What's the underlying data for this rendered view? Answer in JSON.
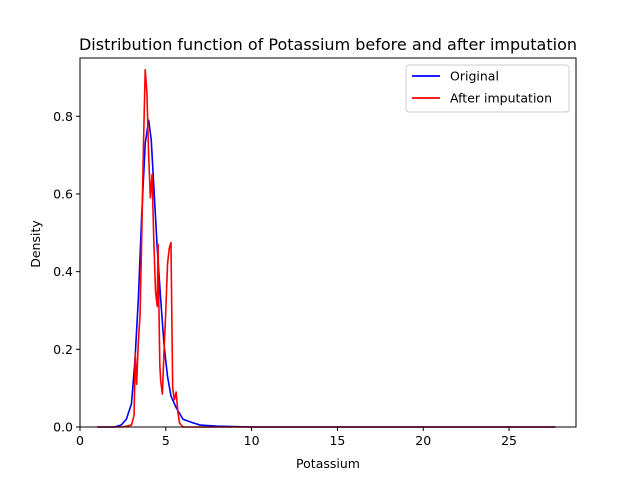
{
  "chart_data": {
    "type": "line",
    "title": "Distribution function of Potassium before and after imputation",
    "xlabel": "Potassium",
    "ylabel": "Density",
    "xlim": [
      0.0,
      28.9
    ],
    "ylim": [
      0.0,
      0.95
    ],
    "xticks": [
      0,
      5,
      10,
      15,
      20,
      25
    ],
    "xtick_labels": [
      "0",
      "5",
      "10",
      "15",
      "20",
      "25"
    ],
    "yticks": [
      0.0,
      0.2,
      0.4,
      0.6,
      0.8
    ],
    "ytick_labels": [
      "0.0",
      "0.2",
      "0.4",
      "0.6",
      "0.8"
    ],
    "grid": false,
    "legend_position": "top-right",
    "series": [
      {
        "name": "Original",
        "color": "#0000ff",
        "x": [
          1.0,
          2.0,
          2.4,
          2.7,
          3.0,
          3.2,
          3.4,
          3.6,
          3.8,
          4.0,
          4.15,
          4.3,
          4.5,
          4.7,
          4.9,
          5.1,
          5.3,
          5.6,
          6.0,
          6.5,
          7.0,
          8.0,
          10.0,
          15.0,
          20.0,
          25.0,
          27.7
        ],
        "y": [
          0.0,
          0.0,
          0.005,
          0.02,
          0.06,
          0.17,
          0.33,
          0.55,
          0.73,
          0.79,
          0.74,
          0.62,
          0.46,
          0.33,
          0.21,
          0.13,
          0.08,
          0.05,
          0.02,
          0.012,
          0.005,
          0.002,
          0.0,
          0.0,
          0.0,
          0.0,
          0.0
        ]
      },
      {
        "name": "After imputation",
        "color": "#ff0000",
        "x": [
          1.0,
          2.5,
          3.0,
          3.15,
          3.22,
          3.3,
          3.4,
          3.5,
          3.6,
          3.7,
          3.8,
          3.9,
          4.0,
          4.1,
          4.2,
          4.3,
          4.4,
          4.5,
          4.55,
          4.6,
          4.65,
          4.7,
          4.8,
          4.9,
          5.0,
          5.1,
          5.2,
          5.3,
          5.4,
          5.5,
          5.6,
          5.7,
          5.8,
          6.0,
          10.0,
          15.0,
          20.0,
          25.0,
          27.7
        ],
        "y": [
          0.0,
          0.0,
          0.005,
          0.03,
          0.19,
          0.11,
          0.22,
          0.29,
          0.5,
          0.73,
          0.92,
          0.86,
          0.7,
          0.59,
          0.65,
          0.48,
          0.35,
          0.31,
          0.47,
          0.3,
          0.16,
          0.12,
          0.085,
          0.2,
          0.3,
          0.42,
          0.46,
          0.475,
          0.1,
          0.07,
          0.09,
          0.04,
          0.01,
          0.0,
          0.0,
          0.0,
          0.0,
          0.0,
          0.0
        ]
      }
    ]
  }
}
